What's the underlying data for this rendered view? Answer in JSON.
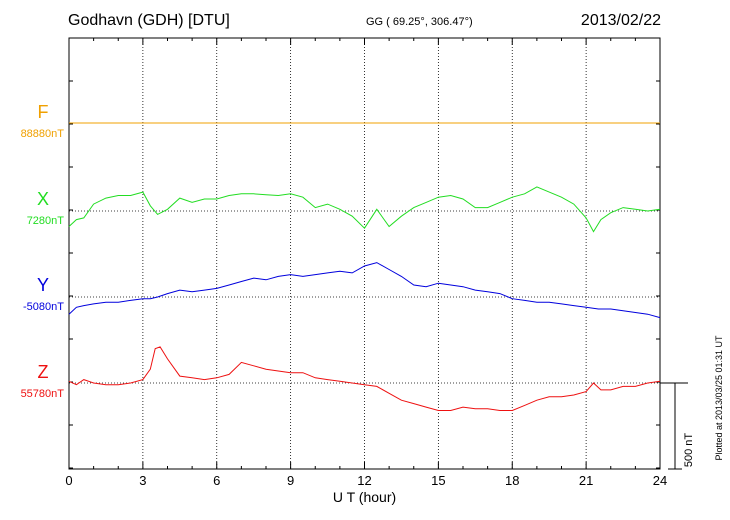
{
  "header": {
    "station": "Godhavn (GDH)  [DTU]",
    "coords": "GG ( 69.25°, 306.47°)",
    "date": "2013/02/22"
  },
  "plotted_note": "Plotted at 2013/03/25 01:31  UT",
  "scale_label": "500 nT",
  "colors": {
    "F": "#f0a000",
    "X": "#22dd22",
    "Y": "#0000dd",
    "Z": "#ee1111",
    "axis": "#000000",
    "grid": "#000000"
  },
  "chart_data": {
    "type": "line",
    "title": "Godhavn (GDH)  [DTU]",
    "xlabel": "U T (hour)",
    "xlim": [
      0,
      24
    ],
    "xticks": [
      0,
      3,
      6,
      9,
      12,
      15,
      18,
      21,
      24
    ],
    "grid": true,
    "scale_bar_nT": 500,
    "series": [
      {
        "name": "F",
        "baseline_label": "88880nT",
        "baseline": 88880,
        "x": [
          0,
          24
        ],
        "values": [
          88880,
          88880
        ]
      },
      {
        "name": "X",
        "baseline_label": "7280nT",
        "baseline": 7280,
        "x": [
          0,
          0.3,
          0.6,
          1,
          1.5,
          2,
          2.5,
          3,
          3.3,
          3.6,
          4,
          4.5,
          5,
          5.5,
          6,
          6.5,
          7,
          7.5,
          8,
          8.5,
          9,
          9.5,
          10,
          10.5,
          11,
          11.5,
          12,
          12.5,
          13,
          13.5,
          14,
          14.5,
          15,
          15.5,
          16,
          16.5,
          17,
          17.5,
          18,
          18.5,
          19,
          19.5,
          20,
          20.5,
          21,
          21.3,
          21.6,
          22,
          22.5,
          23,
          23.5,
          24
        ],
        "values": [
          7190,
          7230,
          7240,
          7320,
          7355,
          7370,
          7370,
          7390,
          7310,
          7260,
          7290,
          7355,
          7330,
          7350,
          7350,
          7370,
          7380,
          7380,
          7375,
          7370,
          7380,
          7360,
          7300,
          7320,
          7290,
          7250,
          7180,
          7290,
          7190,
          7250,
          7300,
          7330,
          7360,
          7370,
          7350,
          7300,
          7300,
          7330,
          7360,
          7380,
          7420,
          7390,
          7360,
          7320,
          7240,
          7160,
          7230,
          7270,
          7300,
          7290,
          7280,
          7290
        ]
      },
      {
        "name": "Y",
        "baseline_label": "-5080nT",
        "baseline": -5080,
        "x": [
          0,
          0.3,
          0.6,
          1,
          1.5,
          2,
          2.5,
          3,
          3.3,
          3.6,
          4,
          4.5,
          5,
          5.5,
          6,
          6.5,
          7,
          7.5,
          8,
          8.5,
          9,
          9.5,
          10,
          10.5,
          11,
          11.5,
          12,
          12.5,
          13,
          13.5,
          14,
          14.5,
          15,
          15.5,
          16,
          16.5,
          17,
          17.5,
          18,
          18.5,
          19,
          19.5,
          20,
          20.5,
          21,
          21.5,
          22,
          22.5,
          23,
          23.5,
          24
        ],
        "values": [
          -5180,
          -5140,
          -5130,
          -5120,
          -5110,
          -5110,
          -5100,
          -5090,
          -5090,
          -5080,
          -5060,
          -5040,
          -5050,
          -5040,
          -5030,
          -5010,
          -4990,
          -4970,
          -4980,
          -4960,
          -4950,
          -4960,
          -4950,
          -4940,
          -4930,
          -4940,
          -4900,
          -4880,
          -4920,
          -4960,
          -5010,
          -5020,
          -5000,
          -5010,
          -5020,
          -5040,
          -5050,
          -5060,
          -5090,
          -5100,
          -5110,
          -5110,
          -5120,
          -5130,
          -5140,
          -5150,
          -5150,
          -5160,
          -5170,
          -5180,
          -5200
        ]
      },
      {
        "name": "Z",
        "baseline_label": "55780nT",
        "baseline": 55780,
        "x": [
          0,
          0.3,
          0.6,
          1,
          1.5,
          2,
          2.5,
          3,
          3.3,
          3.5,
          3.7,
          4,
          4.5,
          5,
          5.5,
          6,
          6.5,
          7,
          7.5,
          8,
          8.5,
          9,
          9.5,
          10,
          10.5,
          11,
          11.5,
          12,
          12.5,
          13,
          13.5,
          14,
          14.5,
          15,
          15.5,
          16,
          16.5,
          17,
          17.5,
          18,
          18.5,
          19,
          19.5,
          20,
          20.5,
          21,
          21.3,
          21.6,
          22,
          22.5,
          23,
          23.5,
          24
        ],
        "values": [
          55790,
          55770,
          55800,
          55780,
          55770,
          55770,
          55780,
          55800,
          55860,
          55980,
          55990,
          55920,
          55820,
          55810,
          55800,
          55810,
          55830,
          55900,
          55880,
          55860,
          55850,
          55840,
          55840,
          55810,
          55800,
          55790,
          55780,
          55770,
          55760,
          55720,
          55680,
          55660,
          55640,
          55620,
          55620,
          55640,
          55630,
          55630,
          55620,
          55620,
          55650,
          55680,
          55700,
          55700,
          55710,
          55730,
          55780,
          55740,
          55740,
          55760,
          55760,
          55780,
          55790
        ]
      }
    ]
  }
}
